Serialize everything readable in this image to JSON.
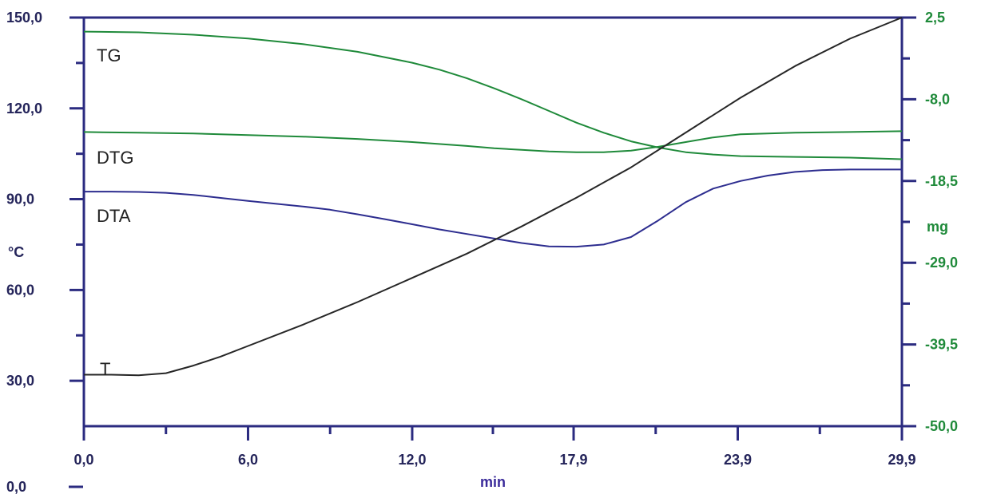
{
  "chart_data": {
    "type": "line",
    "title": "",
    "x_axis": {
      "unit_label": "min",
      "range": [
        0.0,
        29.9
      ],
      "tick_values": [
        0.0,
        6.0,
        12.0,
        17.9,
        23.9,
        29.9
      ],
      "tick_labels": [
        "0,0",
        "6,0",
        "12,0",
        "17,9",
        "23,9",
        "29,9"
      ]
    },
    "y_axis_left": {
      "unit_label": "°C",
      "range": [
        15.0,
        150.0
      ],
      "tick_values": [
        150.0,
        120.0,
        90.0,
        60.0,
        30.0
      ],
      "tick_labels": [
        "150,0",
        "120,0",
        "90,0",
        "60,0",
        "30,0"
      ],
      "extra_label": "0,0"
    },
    "y_axis_right": {
      "unit_label": "mg",
      "range": [
        -50.0,
        2.5
      ],
      "tick_values": [
        2.5,
        -8.0,
        -18.5,
        -29.0,
        -39.5,
        -50.0
      ],
      "tick_labels": [
        "2,5",
        "-8,0",
        "-18,5",
        "-29,0",
        "-39,5",
        "-50,0"
      ]
    },
    "grid": false,
    "colors": {
      "frame": "#2b2b80",
      "left_text": "#24245a",
      "right_text": "#1f8a3a",
      "x_unit": "#3a2a9a"
    },
    "series": [
      {
        "name": "TG",
        "axis": "right",
        "color": "#1f8a3a",
        "points": [
          [
            0,
            0.7
          ],
          [
            2,
            0.6
          ],
          [
            4,
            0.3
          ],
          [
            6,
            -0.2
          ],
          [
            8,
            -0.9
          ],
          [
            10,
            -1.9
          ],
          [
            12,
            -3.3
          ],
          [
            13,
            -4.2
          ],
          [
            14,
            -5.3
          ],
          [
            15,
            -6.6
          ],
          [
            16,
            -8.0
          ],
          [
            17,
            -9.5
          ],
          [
            18,
            -11.0
          ],
          [
            19,
            -12.3
          ],
          [
            20,
            -13.4
          ],
          [
            21,
            -14.2
          ],
          [
            22,
            -14.8
          ],
          [
            23,
            -15.1
          ],
          [
            24,
            -15.3
          ],
          [
            26,
            -15.4
          ],
          [
            28,
            -15.5
          ],
          [
            29.9,
            -15.7
          ]
        ]
      },
      {
        "name": "DTG",
        "axis": "right",
        "color": "#1f8a3a",
        "points": [
          [
            0,
            -12.2
          ],
          [
            2,
            -12.3
          ],
          [
            4,
            -12.4
          ],
          [
            6,
            -12.6
          ],
          [
            8,
            -12.8
          ],
          [
            10,
            -13.1
          ],
          [
            12,
            -13.5
          ],
          [
            14,
            -14.0
          ],
          [
            15,
            -14.3
          ],
          [
            16,
            -14.5
          ],
          [
            17,
            -14.7
          ],
          [
            18,
            -14.8
          ],
          [
            19,
            -14.8
          ],
          [
            20,
            -14.6
          ],
          [
            21,
            -14.1
          ],
          [
            22,
            -13.5
          ],
          [
            23,
            -12.9
          ],
          [
            24,
            -12.5
          ],
          [
            26,
            -12.3
          ],
          [
            28,
            -12.2
          ],
          [
            29.9,
            -12.1
          ]
        ]
      },
      {
        "name": "DTA",
        "axis": "left",
        "color": "#2d2d8f",
        "points": [
          [
            0,
            92.5
          ],
          [
            1,
            92.5
          ],
          [
            2,
            92.4
          ],
          [
            3,
            92.1
          ],
          [
            4,
            91.4
          ],
          [
            5,
            90.4
          ],
          [
            6,
            89.4
          ],
          [
            7,
            88.5
          ],
          [
            8,
            87.6
          ],
          [
            9,
            86.5
          ],
          [
            10,
            85.0
          ],
          [
            11,
            83.4
          ],
          [
            12,
            81.7
          ],
          [
            13,
            80.0
          ],
          [
            14,
            78.5
          ],
          [
            15,
            77.0
          ],
          [
            16,
            75.5
          ],
          [
            17,
            74.4
          ],
          [
            18,
            74.3
          ],
          [
            19,
            75.0
          ],
          [
            20,
            77.5
          ],
          [
            21,
            83.0
          ],
          [
            22,
            89.0
          ],
          [
            23,
            93.5
          ],
          [
            24,
            96.0
          ],
          [
            25,
            97.8
          ],
          [
            26,
            99.0
          ],
          [
            27,
            99.6
          ],
          [
            28,
            99.8
          ],
          [
            29.9,
            99.8
          ]
        ]
      },
      {
        "name": "T",
        "axis": "left",
        "color": "#262626",
        "points": [
          [
            0,
            32.0
          ],
          [
            1,
            32.0
          ],
          [
            2,
            31.8
          ],
          [
            3,
            32.5
          ],
          [
            4,
            35.0
          ],
          [
            5,
            38.0
          ],
          [
            6,
            41.5
          ],
          [
            8,
            48.5
          ],
          [
            10,
            56.0
          ],
          [
            12,
            64.0
          ],
          [
            14,
            72.0
          ],
          [
            16,
            81.0
          ],
          [
            18,
            90.5
          ],
          [
            20,
            100.5
          ],
          [
            22,
            112.0
          ],
          [
            24,
            123.5
          ],
          [
            26,
            134.0
          ],
          [
            28,
            143.0
          ],
          [
            29.9,
            150.0
          ]
        ]
      }
    ]
  }
}
